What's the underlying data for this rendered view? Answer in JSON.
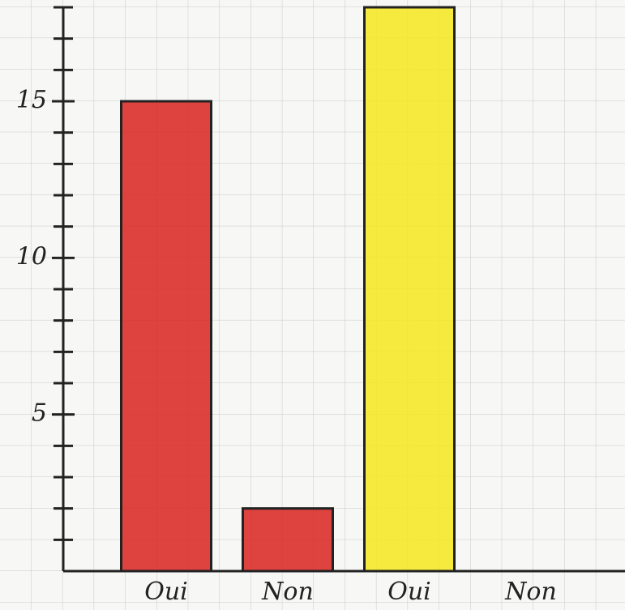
{
  "chart_data": {
    "type": "bar",
    "categories": [
      "Oui",
      "Non",
      "Oui",
      "Non"
    ],
    "values": [
      15,
      2,
      18,
      0
    ],
    "colors": [
      "#d9231f",
      "#d9231f",
      "#f5e81c",
      "#f5e81c"
    ],
    "ylim": [
      0,
      18
    ],
    "yticks": [
      5,
      10,
      15
    ],
    "minor_yticks": [
      1,
      2,
      3,
      4,
      6,
      7,
      8,
      9,
      11,
      12,
      13,
      14,
      16,
      17,
      18
    ],
    "grid": true
  }
}
